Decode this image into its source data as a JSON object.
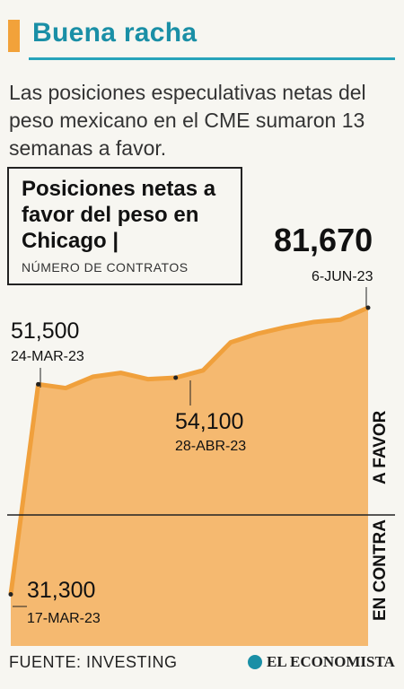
{
  "header": {
    "title": "Buena racha",
    "accent_color": "#f2a23a",
    "title_color": "#1a8fa6"
  },
  "deck": "Las posiciones especulativas netas del peso mexicano en el CME sumaron 13 semanas a favor.",
  "label": {
    "title": "Posiciones netas a favor del peso en Chicago |",
    "subtitle": "NÚMERO DE CONTRATOS"
  },
  "chart_data": {
    "type": "area",
    "series": [
      {
        "values": [
          -31300,
          51500,
          50000,
          54500,
          56000,
          53500,
          54100,
          57000,
          68000,
          71500,
          74000,
          76000,
          77000,
          81670
        ]
      }
    ],
    "fill_color": "#f5b970",
    "line_color": "#f0a03c",
    "zero_line_labels": {
      "above": "A FAVOR",
      "below": "EN CONTRA"
    },
    "annotations": [
      {
        "index": 0,
        "value_label": "31,300",
        "date_label": "17-MAR-23"
      },
      {
        "index": 1,
        "value_label": "51,500",
        "date_label": "24-MAR-23"
      },
      {
        "index": 6,
        "value_label": "54,100",
        "date_label": "28-ABR-23"
      },
      {
        "index": 13,
        "value_label": "81,670",
        "date_label": "6-JUN-23"
      }
    ]
  },
  "footer": {
    "source": "FUENTE: INVESTING",
    "brand": "EL ECONOMISTA"
  }
}
